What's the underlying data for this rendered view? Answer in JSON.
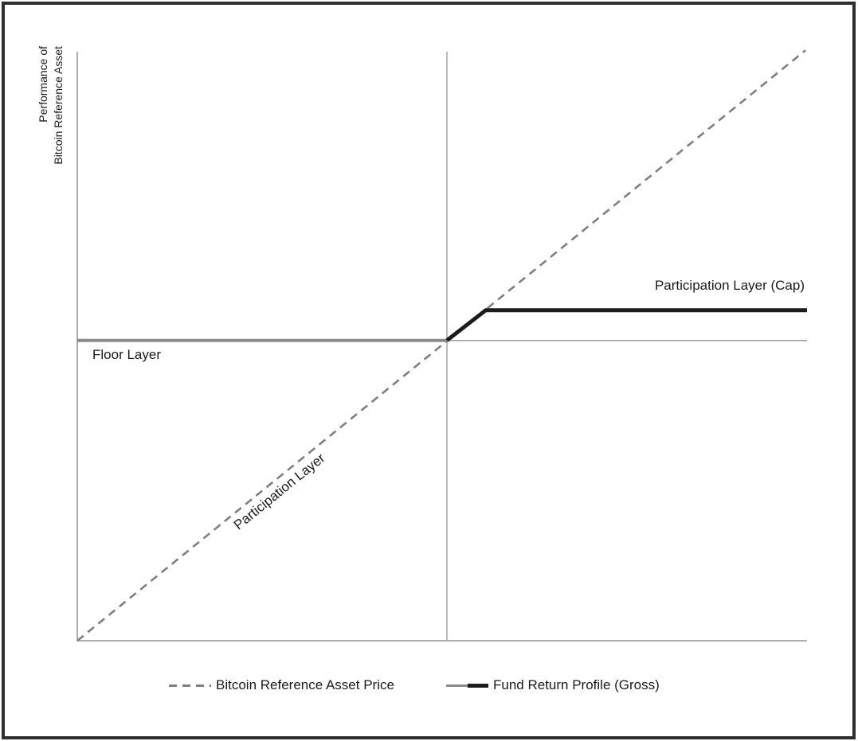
{
  "figure": {
    "description": "Payoff diagram of fund return profile versus bitcoin reference asset price",
    "frame_color": "#2e2e2e",
    "background_color": "#ffffff"
  },
  "annotations": {
    "y_axis_label": "Performance of Bitcoin Reference Asset",
    "floor_label": "Floor Layer",
    "participation_label": "Participation Layer",
    "cap_label": "Participation Layer (Cap)"
  },
  "legend": {
    "reference_label": "Bitcoin Reference Asset Price",
    "fund_label": "Fund Return Profile (Gross)"
  },
  "colors": {
    "axis_gray": "#aaaaaa",
    "dashed_gray": "#7f7f7f",
    "floor_gray": "#8a8a8a",
    "line_black": "#1c1c1c",
    "text": "#1a1a1a"
  },
  "chart_data": {
    "type": "line",
    "title": "",
    "xlabel": "",
    "ylabel": "Performance of Bitcoin Reference Asset",
    "x_range": [
      -1.0,
      0.974
    ],
    "y_range": [
      -1.04,
      1.0
    ],
    "grid": false,
    "legend_position": "bottom",
    "notes": {
      "floor_level": 0.0,
      "cap_level": 0.105,
      "participation_slope": 1.0
    },
    "series": [
      {
        "id": "y-axis-line",
        "role": "axis",
        "color": "#adadad",
        "width": 2,
        "points": [
          [
            -1.0,
            -1.04
          ],
          [
            -1.0,
            1.0
          ]
        ]
      },
      {
        "id": "x-axis-line",
        "role": "axis",
        "color": "#adadad",
        "width": 2,
        "points": [
          [
            -1.0,
            -1.04
          ],
          [
            0.974,
            -1.04
          ]
        ]
      },
      {
        "id": "strike-vertical-line",
        "role": "reference",
        "color": "#a5a5a5",
        "width": 1.5,
        "points": [
          [
            0.0,
            -1.04
          ],
          [
            0.0,
            1.0
          ]
        ]
      },
      {
        "id": "zero-horizontal-line",
        "role": "reference",
        "color": "#9a9a9a",
        "width": 1.5,
        "points": [
          [
            0.0,
            0.0
          ],
          [
            0.974,
            0.0
          ]
        ]
      },
      {
        "id": "bitcoin-reference-asset-price",
        "role": "data",
        "color": "#7f7f7f",
        "width": 2.6,
        "dash": "10,7",
        "points": [
          [
            -1.0,
            -1.04
          ],
          [
            0.97,
            1.005
          ]
        ]
      },
      {
        "id": "fund-floor-segment",
        "role": "data",
        "color": "#8a8a8a",
        "width": 4,
        "points": [
          [
            -1.0,
            0.0
          ],
          [
            0.0,
            0.0
          ]
        ]
      },
      {
        "id": "fund-rise-and-cap-segment",
        "role": "data",
        "color": "#1c1c1c",
        "width": 5,
        "points": [
          [
            0.0,
            0.0
          ],
          [
            0.105,
            0.105
          ],
          [
            0.974,
            0.105
          ]
        ]
      }
    ]
  }
}
